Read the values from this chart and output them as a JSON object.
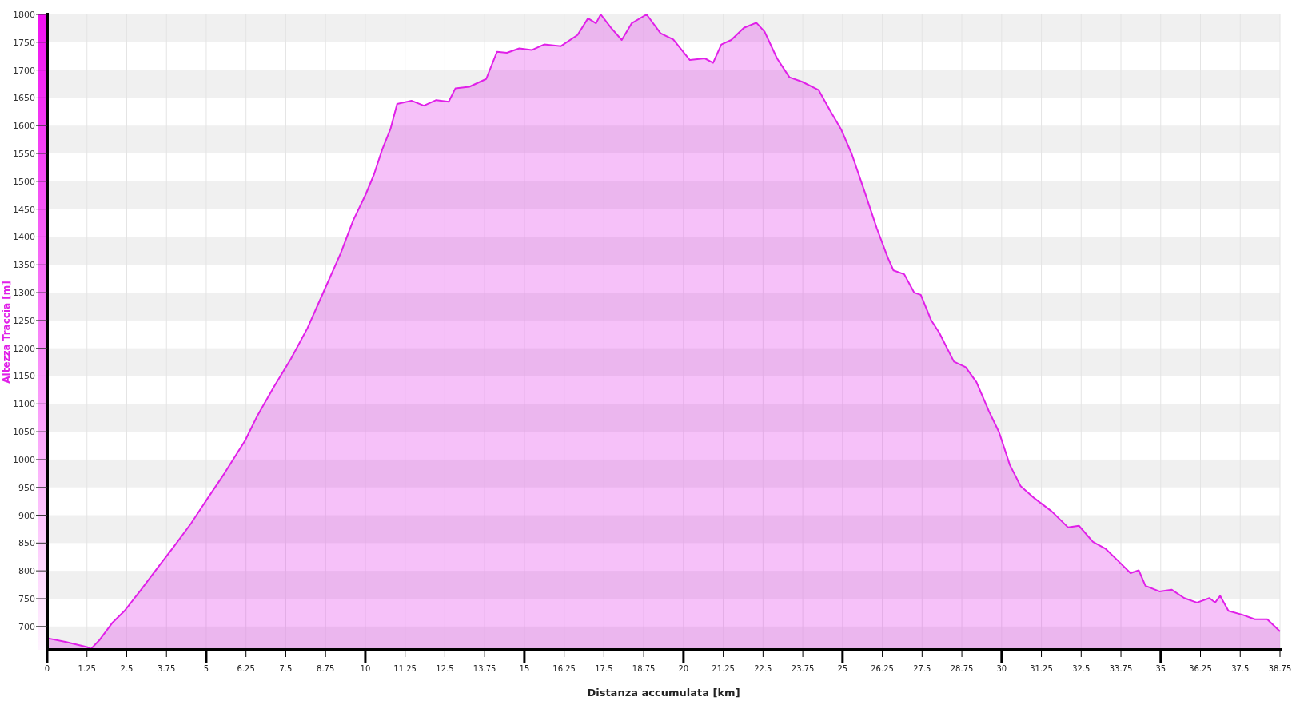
{
  "chart_data": {
    "type": "area",
    "xlabel": "Distanza accumulata [km]",
    "ylabel": "Altezza Traccia [m]",
    "xlim": [
      0,
      38.75
    ],
    "ylim": [
      658,
      1800
    ],
    "xticks": [
      0,
      1.25,
      2.5,
      3.75,
      5,
      6.25,
      7.5,
      8.75,
      10,
      11.25,
      12.5,
      13.75,
      15,
      16.25,
      17.5,
      18.75,
      20,
      21.25,
      22.5,
      23.75,
      25,
      26.25,
      27.5,
      28.75,
      30,
      31.25,
      32.5,
      33.75,
      35,
      36.25,
      37.5,
      38.75
    ],
    "yticks": [
      700,
      750,
      800,
      850,
      900,
      950,
      1000,
      1050,
      1100,
      1150,
      1200,
      1250,
      1300,
      1350,
      1400,
      1450,
      1500,
      1550,
      1600,
      1650,
      1700,
      1750,
      1800
    ],
    "grid": true,
    "series": [
      {
        "color": "#e020e8",
        "x": [
          0,
          0.6,
          1.25,
          1.38,
          1.65,
          2.04,
          2.43,
          2.95,
          3.48,
          4.0,
          4.52,
          5.04,
          5.57,
          6.22,
          6.61,
          7.13,
          7.66,
          8.18,
          8.7,
          9.22,
          9.62,
          10.0,
          10.27,
          10.53,
          10.79,
          11.0,
          11.45,
          11.84,
          12.23,
          12.62,
          12.83,
          13.27,
          13.8,
          14.14,
          14.45,
          14.84,
          15.23,
          15.62,
          16.15,
          16.67,
          17.0,
          17.25,
          17.4,
          17.72,
          18.06,
          18.37,
          18.84,
          19.28,
          19.68,
          20.2,
          20.67,
          20.93,
          21.19,
          21.5,
          21.9,
          22.29,
          22.55,
          22.94,
          23.33,
          23.73,
          24.25,
          24.64,
          24.95,
          25.29,
          25.69,
          26.08,
          26.42,
          26.6,
          26.94,
          27.25,
          27.46,
          27.78,
          28.04,
          28.5,
          28.87,
          29.21,
          29.6,
          29.92,
          30.26,
          30.6,
          31.04,
          31.57,
          32.09,
          32.43,
          32.87,
          33.26,
          33.66,
          34.05,
          34.31,
          34.52,
          34.96,
          35.35,
          35.74,
          36.14,
          36.53,
          36.71,
          36.87,
          37.13,
          37.57,
          37.96,
          38.35,
          38.75
        ],
        "values": [
          679,
          672,
          663,
          660,
          676,
          706,
          728,
          766,
          806,
          845,
          885,
          930,
          975,
          1034,
          1079,
          1131,
          1181,
          1236,
          1303,
          1370,
          1430,
          1475,
          1512,
          1557,
          1594,
          1639,
          1645,
          1636,
          1646,
          1643,
          1667,
          1670,
          1684,
          1733,
          1731,
          1739,
          1736,
          1746,
          1743,
          1763,
          1793,
          1784,
          1800,
          1776,
          1754,
          1784,
          1800,
          1766,
          1755,
          1718,
          1721,
          1713,
          1746,
          1754,
          1776,
          1785,
          1769,
          1721,
          1687,
          1679,
          1664,
          1624,
          1594,
          1549,
          1482,
          1415,
          1363,
          1340,
          1333,
          1300,
          1296,
          1251,
          1228,
          1176,
          1166,
          1139,
          1087,
          1049,
          990,
          952,
          930,
          907,
          878,
          881,
          852,
          840,
          818,
          796,
          801,
          773,
          763,
          766,
          751,
          743,
          751,
          743,
          755,
          728,
          721,
          713,
          713,
          691
        ]
      }
    ]
  }
}
